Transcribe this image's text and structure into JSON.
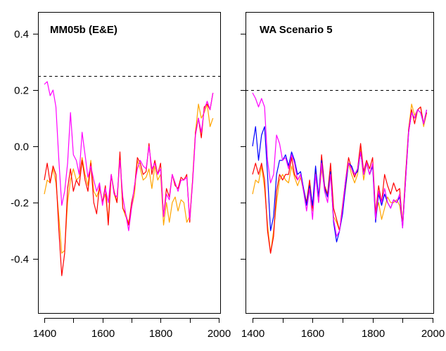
{
  "chart_data": [
    {
      "type": "line",
      "title": "MM05b (E&E)",
      "xlabel": "",
      "ylabel": "",
      "xlim": [
        1390,
        2005
      ],
      "ylim": [
        -0.59,
        0.478
      ],
      "x_ticks": [
        1400,
        1500,
        1600,
        1700,
        1800,
        1900,
        2000
      ],
      "x_tick_labels": [
        "1400",
        "",
        "1600",
        "",
        "1800",
        "",
        "2000"
      ],
      "y_ticks": [
        0.4,
        0.2,
        0.0,
        -0.2,
        -0.4
      ],
      "y_tick_labels": [
        "0.4",
        "0.2",
        "0.0",
        "-0.2",
        "-0.4"
      ],
      "grid": false,
      "reference_line": {
        "y": 0.25,
        "style": "dashed",
        "color": "#000000"
      },
      "x": [
        1400,
        1410,
        1420,
        1430,
        1440,
        1450,
        1460,
        1470,
        1480,
        1490,
        1500,
        1510,
        1520,
        1530,
        1540,
        1550,
        1560,
        1570,
        1580,
        1590,
        1600,
        1610,
        1620,
        1630,
        1640,
        1650,
        1660,
        1670,
        1680,
        1690,
        1700,
        1710,
        1720,
        1730,
        1740,
        1750,
        1760,
        1770,
        1780,
        1790,
        1800,
        1810,
        1820,
        1830,
        1840,
        1850,
        1860,
        1870,
        1880,
        1890,
        1900,
        1910,
        1920,
        1930,
        1940,
        1950,
        1960,
        1970,
        1980
      ],
      "series": [
        {
          "name": "orange",
          "color": "#FFA500",
          "values": [
            -0.17,
            -0.12,
            -0.13,
            -0.08,
            -0.13,
            -0.25,
            -0.38,
            -0.37,
            -0.2,
            -0.12,
            -0.08,
            -0.12,
            -0.11,
            -0.04,
            -0.1,
            -0.14,
            -0.05,
            -0.16,
            -0.18,
            -0.15,
            -0.2,
            -0.17,
            -0.26,
            -0.1,
            -0.17,
            -0.2,
            -0.04,
            -0.22,
            -0.25,
            -0.27,
            -0.22,
            -0.17,
            -0.05,
            -0.08,
            -0.12,
            -0.11,
            -0.08,
            -0.15,
            -0.07,
            -0.12,
            -0.1,
            -0.28,
            -0.2,
            -0.27,
            -0.2,
            -0.18,
            -0.23,
            -0.19,
            -0.2,
            -0.27,
            -0.25,
            -0.12,
            0.05,
            0.15,
            0.1,
            0.12,
            0.15,
            0.07,
            0.1
          ]
        },
        {
          "name": "red",
          "color": "#FF0000",
          "values": [
            -0.12,
            -0.06,
            -0.13,
            -0.07,
            -0.1,
            -0.3,
            -0.46,
            -0.38,
            -0.15,
            -0.08,
            -0.16,
            -0.12,
            -0.14,
            -0.05,
            -0.12,
            -0.16,
            -0.06,
            -0.2,
            -0.24,
            -0.14,
            -0.2,
            -0.14,
            -0.28,
            -0.1,
            -0.16,
            -0.2,
            -0.02,
            -0.22,
            -0.24,
            -0.28,
            -0.2,
            -0.15,
            -0.04,
            -0.06,
            -0.1,
            -0.09,
            0.01,
            -0.1,
            -0.05,
            -0.1,
            -0.06,
            -0.25,
            -0.15,
            -0.18,
            -0.1,
            -0.14,
            -0.15,
            -0.11,
            -0.12,
            -0.1,
            -0.27,
            -0.12,
            0.05,
            0.1,
            0.03,
            0.14,
            0.15,
            0.13,
            0.19
          ]
        },
        {
          "name": "magenta",
          "color": "#FF00FF",
          "values": [
            0.22,
            0.23,
            0.18,
            0.2,
            0.14,
            -0.05,
            -0.21,
            -0.16,
            -0.06,
            0.12,
            -0.03,
            -0.05,
            -0.1,
            0.05,
            -0.03,
            -0.11,
            -0.07,
            -0.12,
            -0.16,
            -0.13,
            -0.21,
            -0.15,
            -0.2,
            -0.1,
            -0.17,
            -0.18,
            -0.05,
            -0.18,
            -0.24,
            -0.3,
            -0.22,
            -0.14,
            -0.08,
            -0.05,
            -0.07,
            -0.08,
            0.0,
            -0.08,
            -0.06,
            -0.1,
            -0.08,
            -0.25,
            -0.17,
            -0.19,
            -0.1,
            -0.13,
            -0.16,
            -0.12,
            -0.12,
            -0.11,
            -0.26,
            -0.13,
            0.04,
            0.1,
            0.05,
            0.13,
            0.16,
            0.13,
            0.19
          ]
        }
      ]
    },
    {
      "type": "line",
      "title": "WA Scenario 5",
      "xlabel": "",
      "ylabel": "",
      "xlim": [
        1390,
        2005
      ],
      "ylim": [
        -0.59,
        0.478
      ],
      "x_ticks": [
        1400,
        1500,
        1600,
        1700,
        1800,
        1900,
        2000
      ],
      "x_tick_labels": [
        "1400",
        "",
        "1600",
        "",
        "1800",
        "",
        "2000"
      ],
      "y_ticks": [
        0.4,
        0.2,
        0.0,
        -0.2,
        -0.4
      ],
      "y_tick_labels": [
        "",
        "",
        "",
        "",
        ""
      ],
      "grid": false,
      "reference_line": {
        "y": 0.2,
        "style": "dashed",
        "color": "#000000"
      },
      "x": [
        1400,
        1410,
        1420,
        1430,
        1440,
        1450,
        1460,
        1470,
        1480,
        1490,
        1500,
        1510,
        1520,
        1530,
        1540,
        1550,
        1560,
        1570,
        1580,
        1590,
        1600,
        1610,
        1620,
        1630,
        1640,
        1650,
        1660,
        1670,
        1680,
        1690,
        1700,
        1710,
        1720,
        1730,
        1740,
        1750,
        1760,
        1770,
        1780,
        1790,
        1800,
        1810,
        1820,
        1830,
        1840,
        1850,
        1860,
        1870,
        1880,
        1890,
        1900,
        1910,
        1920,
        1930,
        1940,
        1950,
        1960,
        1970,
        1980
      ],
      "series": [
        {
          "name": "orange",
          "color": "#FFA500",
          "values": [
            -0.17,
            -0.12,
            -0.13,
            -0.07,
            -0.15,
            -0.28,
            -0.38,
            -0.3,
            -0.2,
            -0.12,
            -0.1,
            -0.12,
            -0.13,
            -0.07,
            -0.11,
            -0.14,
            -0.11,
            -0.16,
            -0.2,
            -0.13,
            -0.23,
            -0.1,
            -0.2,
            -0.08,
            -0.15,
            -0.18,
            -0.07,
            -0.25,
            -0.27,
            -0.3,
            -0.22,
            -0.15,
            -0.06,
            -0.1,
            -0.13,
            -0.1,
            -0.01,
            -0.12,
            -0.06,
            -0.1,
            -0.07,
            -0.24,
            -0.2,
            -0.26,
            -0.22,
            -0.18,
            -0.2,
            -0.2,
            -0.19,
            -0.21,
            -0.28,
            -0.1,
            0.06,
            0.15,
            0.11,
            0.13,
            0.14,
            0.07,
            0.12
          ]
        },
        {
          "name": "red",
          "color": "#FF0000",
          "values": [
            -0.1,
            -0.06,
            -0.1,
            -0.06,
            -0.12,
            -0.3,
            -0.38,
            -0.32,
            -0.16,
            -0.1,
            -0.12,
            -0.1,
            -0.1,
            -0.04,
            -0.1,
            -0.12,
            -0.1,
            -0.15,
            -0.2,
            -0.12,
            -0.22,
            -0.08,
            -0.19,
            -0.03,
            -0.14,
            -0.17,
            -0.06,
            -0.22,
            -0.26,
            -0.3,
            -0.21,
            -0.12,
            -0.04,
            -0.08,
            -0.11,
            -0.08,
            0.01,
            -0.09,
            -0.05,
            -0.08,
            -0.04,
            -0.24,
            -0.14,
            -0.2,
            -0.1,
            -0.14,
            -0.17,
            -0.13,
            -0.16,
            -0.15,
            -0.28,
            -0.1,
            0.06,
            0.13,
            0.08,
            0.13,
            0.14,
            0.08,
            0.12
          ]
        },
        {
          "name": "blue",
          "color": "#0000FF",
          "values": [
            0.0,
            0.07,
            -0.05,
            0.04,
            0.07,
            -0.1,
            -0.3,
            -0.25,
            -0.1,
            -0.05,
            -0.05,
            -0.03,
            -0.07,
            -0.02,
            -0.05,
            -0.1,
            -0.09,
            -0.15,
            -0.21,
            -0.14,
            -0.21,
            -0.07,
            -0.18,
            -0.05,
            -0.15,
            -0.18,
            -0.09,
            -0.27,
            -0.34,
            -0.3,
            -0.24,
            -0.14,
            -0.06,
            -0.07,
            -0.1,
            -0.09,
            -0.02,
            -0.1,
            -0.06,
            -0.1,
            -0.07,
            -0.27,
            -0.17,
            -0.21,
            -0.17,
            -0.2,
            -0.22,
            -0.19,
            -0.2,
            -0.18,
            -0.29,
            -0.12,
            0.05,
            0.12,
            0.1,
            0.13,
            0.12,
            0.08,
            0.13
          ]
        },
        {
          "name": "magenta",
          "color": "#FF00FF",
          "values": [
            0.19,
            0.17,
            0.14,
            0.17,
            0.14,
            -0.05,
            -0.13,
            -0.1,
            0.04,
            0.01,
            -0.05,
            -0.04,
            -0.08,
            -0.03,
            -0.06,
            -0.12,
            -0.1,
            -0.16,
            -0.23,
            -0.15,
            -0.26,
            -0.1,
            -0.2,
            -0.06,
            -0.16,
            -0.2,
            -0.1,
            -0.26,
            -0.32,
            -0.3,
            -0.22,
            -0.12,
            -0.06,
            -0.08,
            -0.1,
            -0.08,
            -0.02,
            -0.1,
            -0.06,
            -0.1,
            -0.06,
            -0.26,
            -0.16,
            -0.2,
            -0.15,
            -0.2,
            -0.22,
            -0.19,
            -0.2,
            -0.17,
            -0.29,
            -0.12,
            0.05,
            0.12,
            0.1,
            0.13,
            0.12,
            0.08,
            0.13
          ]
        }
      ]
    }
  ]
}
